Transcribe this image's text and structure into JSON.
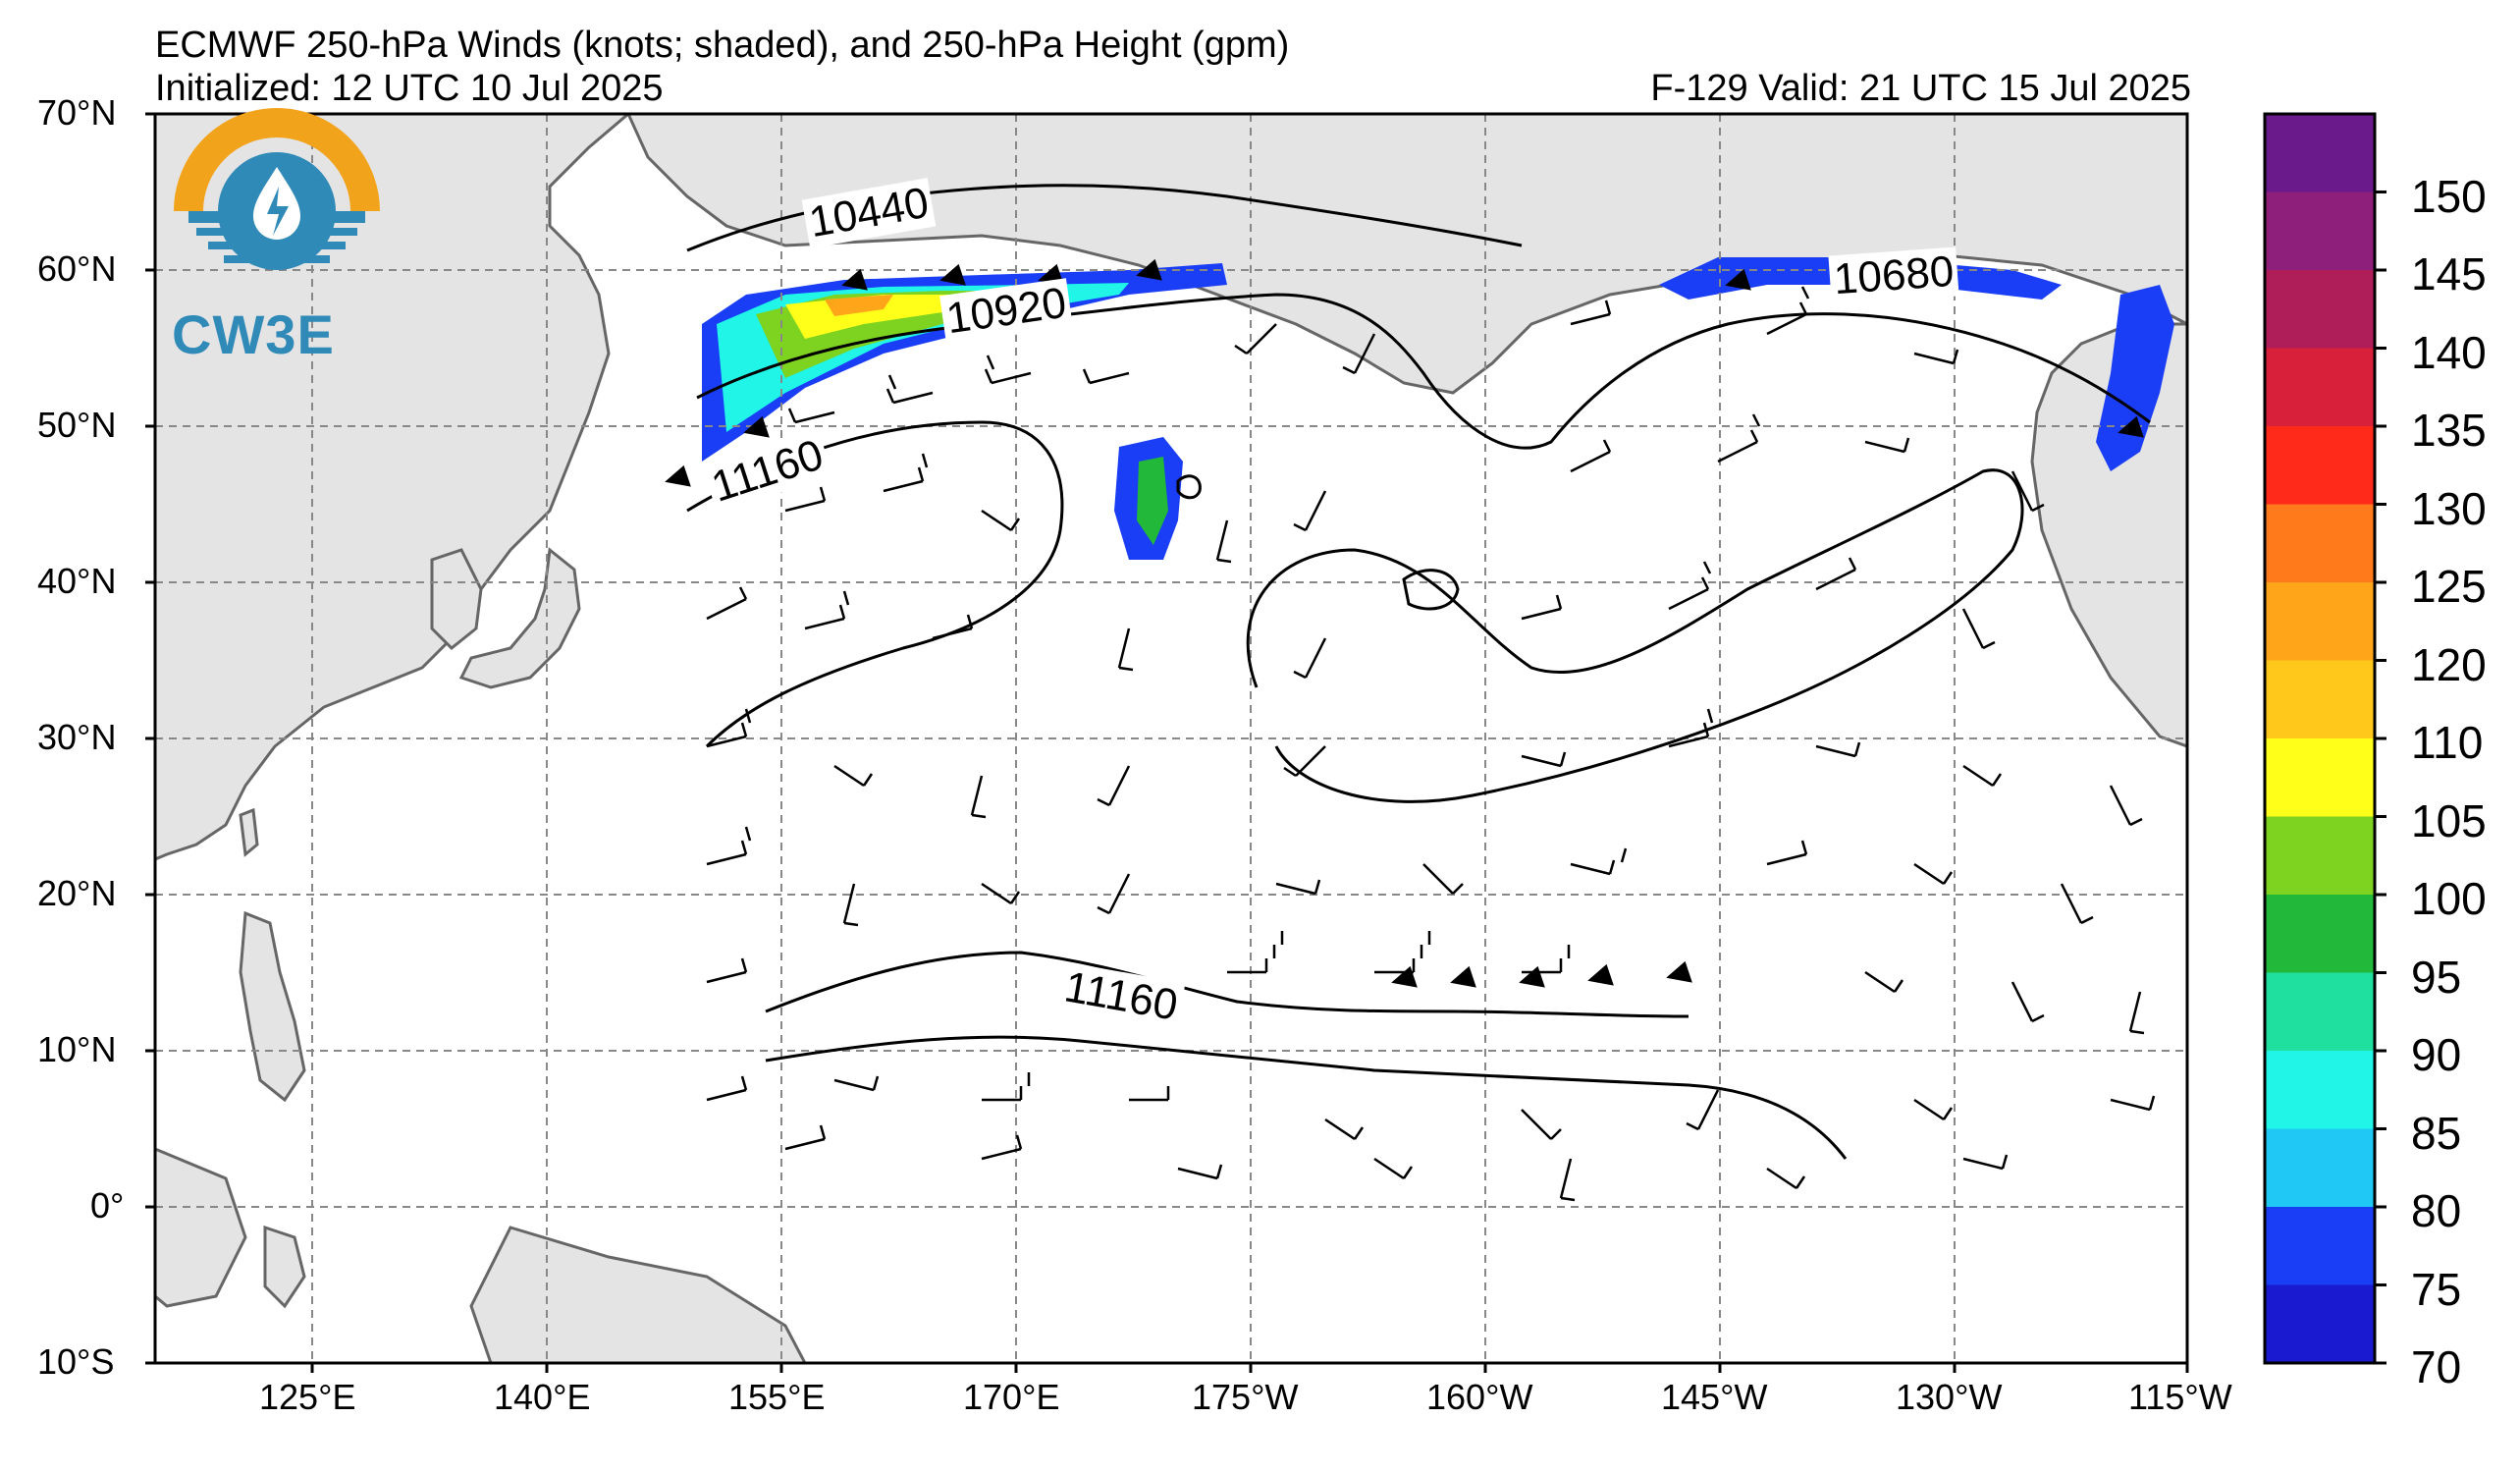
{
  "header": {
    "title": "ECMWF 250-hPa Winds (knots; shaded), and 250-hPa Height (gpm)",
    "initialized": "Initialized: 12 UTC 10 Jul 2025",
    "valid": "F-129  Valid: 21 UTC 15 Jul 2025"
  },
  "logo": {
    "text": "CW3E",
    "icon": "water-drop-lightning-icon"
  },
  "axes": {
    "lat_labels": [
      "70°N",
      "60°N",
      "50°N",
      "40°N",
      "30°N",
      "20°N",
      "10°N",
      "0°",
      "10°S"
    ],
    "lon_labels": [
      "125°E",
      "140°E",
      "155°E",
      "170°E",
      "175°W",
      "160°W",
      "145°W",
      "130°W",
      "115°W"
    ]
  },
  "contour_labels": [
    "10440",
    "10920",
    "11160",
    "11160",
    "10680"
  ],
  "colorbar": {
    "labels": [
      "150",
      "145",
      "140",
      "135",
      "130",
      "125",
      "120",
      "110",
      "105",
      "100",
      "95",
      "90",
      "85",
      "80",
      "75",
      "70"
    ],
    "colors": [
      "#6a1a8a",
      "#8e1f7a",
      "#b01e5a",
      "#d8203a",
      "#ff2a1a",
      "#ff7a1a",
      "#ffa51a",
      "#ffc81a",
      "#ffff1a",
      "#7ed321",
      "#22b83a",
      "#20e0a0",
      "#20f5e8",
      "#20c8f5",
      "#1a3ef5",
      "#1a1ad0"
    ]
  },
  "colors": {
    "land": "#e4e4e4",
    "ocean": "#ffffff",
    "coast": "#666666",
    "grid": "#888888"
  }
}
